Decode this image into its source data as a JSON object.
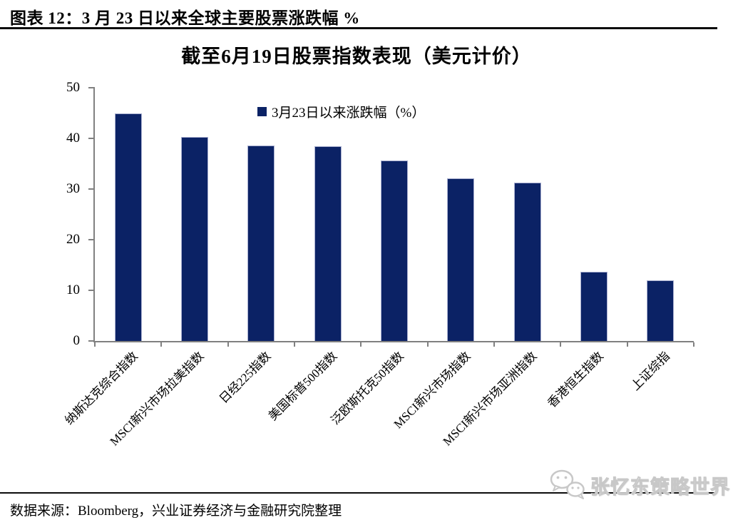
{
  "header": {
    "title": "图表 12：3 月 23 日以来全球主要股票涨跌幅 %"
  },
  "chart_data": {
    "type": "bar",
    "title": "截至6月19日股票指数表现（美元计价）",
    "legend": [
      {
        "label": "3月23日以来涨跌幅（%）",
        "swatch_color": "#0b2265"
      }
    ],
    "legend_position": "inside-top-center",
    "categories": [
      "纳斯达克综合指数",
      "MSCI新兴市场拉美指数",
      "日经225指数",
      "美国标普500指数",
      "泛欧斯托克50指数",
      "MSCI新兴市场指数",
      "MSCI新兴市场亚洲指数",
      "香港恒生指数",
      "上证综指"
    ],
    "values": [
      45.0,
      40.3,
      38.6,
      38.4,
      35.7,
      32.1,
      31.2,
      13.7,
      12.0
    ],
    "xlabel": "",
    "ylabel": "",
    "ylim": [
      0,
      50
    ],
    "ytick_step": 10,
    "yticks": [
      0,
      10,
      20,
      30,
      40,
      50
    ],
    "grid": false,
    "bar_color": "#0b2265",
    "bar_edge_color": "#a9afd0",
    "axis_color": "#808080",
    "xlabel_rotation_deg": 45
  },
  "footer": {
    "source": "数据来源：Bloomberg，兴业证券经济与金融研究院整理"
  },
  "watermark": {
    "text": "张忆东策略世界",
    "icon": "wechat-logo"
  }
}
